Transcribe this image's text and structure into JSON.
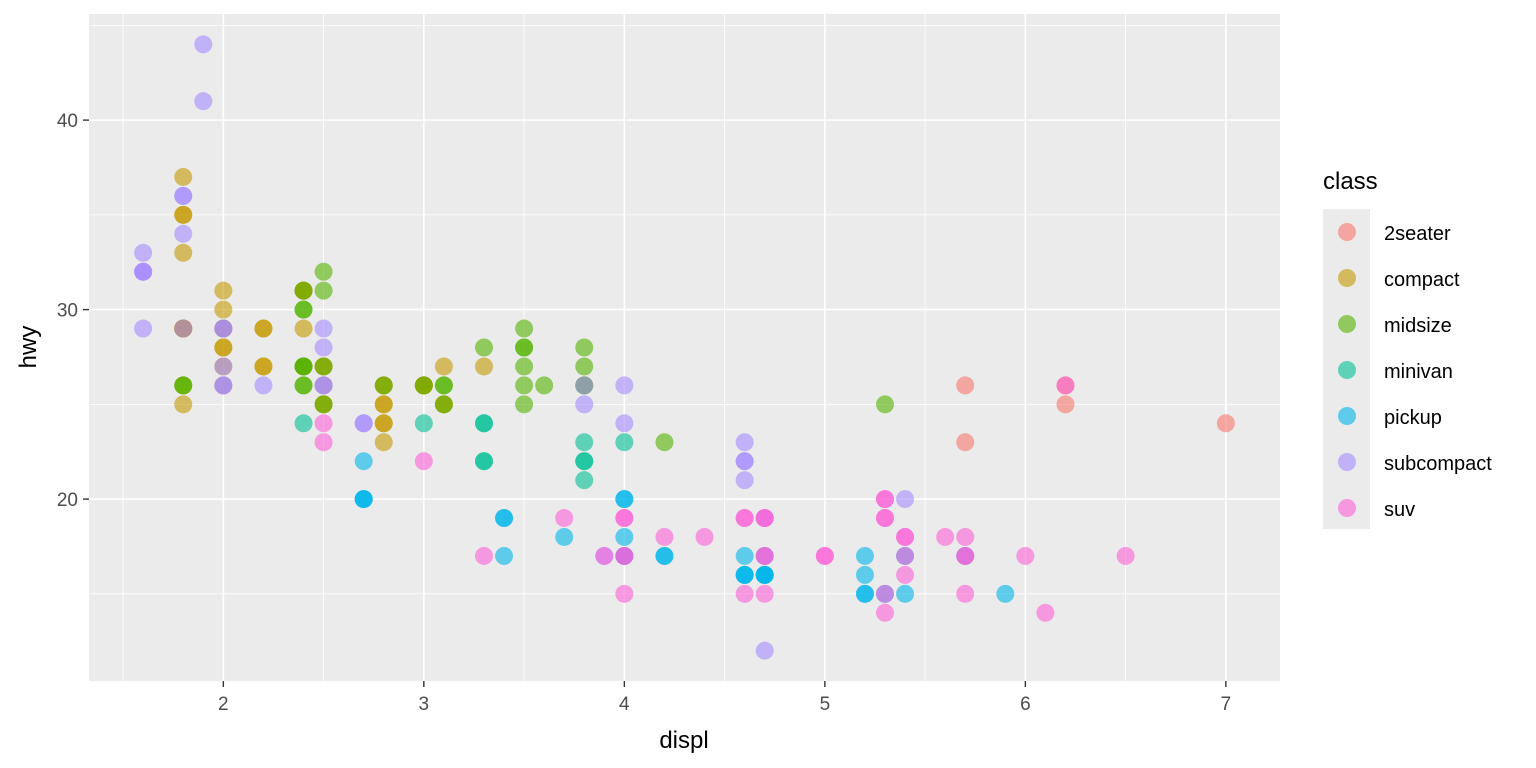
{
  "chart_data": {
    "type": "scatter",
    "xlabel": "displ",
    "ylabel": "hwy",
    "xlim": [
      1.33,
      7.27
    ],
    "ylim": [
      10.4,
      45.6
    ],
    "x_ticks": [
      2,
      3,
      4,
      5,
      6,
      7
    ],
    "y_ticks": [
      20,
      30,
      40
    ],
    "grid": true,
    "legend": {
      "title": "class",
      "position": "right"
    },
    "series": [
      {
        "name": "2seater",
        "color": "#F8766D",
        "points": [
          [
            5.7,
            26
          ],
          [
            5.7,
            23
          ],
          [
            6.2,
            26
          ],
          [
            6.2,
            25
          ],
          [
            7.0,
            24
          ]
        ]
      },
      {
        "name": "compact",
        "color": "#C49A00",
        "points": [
          [
            1.8,
            29
          ],
          [
            1.8,
            29
          ],
          [
            2.0,
            31
          ],
          [
            2.0,
            30
          ],
          [
            2.8,
            26
          ],
          [
            2.8,
            26
          ],
          [
            3.1,
            27
          ],
          [
            1.8,
            26
          ],
          [
            1.8,
            25
          ],
          [
            2.0,
            28
          ],
          [
            2.0,
            27
          ],
          [
            2.8,
            25
          ],
          [
            2.8,
            25
          ],
          [
            3.1,
            25
          ],
          [
            3.1,
            25
          ],
          [
            2.2,
            29
          ],
          [
            2.2,
            27
          ],
          [
            2.4,
            31
          ],
          [
            2.4,
            31
          ],
          [
            3.0,
            26
          ],
          [
            3.0,
            26
          ],
          [
            2.2,
            27
          ],
          [
            2.2,
            29
          ],
          [
            2.4,
            31
          ],
          [
            2.4,
            29
          ],
          [
            3.0,
            26
          ],
          [
            3.0,
            26
          ],
          [
            3.3,
            27
          ],
          [
            1.8,
            33
          ],
          [
            1.8,
            35
          ],
          [
            1.8,
            37
          ],
          [
            1.8,
            35
          ],
          [
            1.8,
            29
          ],
          [
            1.8,
            29
          ],
          [
            2.0,
            28
          ],
          [
            2.0,
            29
          ],
          [
            2.0,
            26
          ],
          [
            2.0,
            29
          ],
          [
            2.8,
            24
          ],
          [
            2.8,
            24
          ],
          [
            2.5,
            27
          ],
          [
            2.5,
            25
          ],
          [
            2.5,
            26
          ],
          [
            2.5,
            25
          ],
          [
            2.5,
            27
          ],
          [
            2.8,
            23
          ],
          [
            2.4,
            27
          ]
        ]
      },
      {
        "name": "midsize",
        "color": "#53B400",
        "points": [
          [
            1.8,
            26
          ],
          [
            2.4,
            26
          ],
          [
            2.4,
            27
          ],
          [
            3.1,
            26
          ],
          [
            3.5,
            28
          ],
          [
            3.6,
            26
          ],
          [
            2.4,
            30
          ],
          [
            3.0,
            26
          ],
          [
            3.3,
            28
          ],
          [
            3.8,
            26
          ],
          [
            2.4,
            27
          ],
          [
            3.5,
            29
          ],
          [
            3.8,
            27
          ],
          [
            2.5,
            31
          ],
          [
            2.5,
            32
          ],
          [
            2.5,
            27
          ],
          [
            3.5,
            26
          ],
          [
            3.5,
            25
          ],
          [
            2.4,
            31
          ],
          [
            2.4,
            30
          ],
          [
            3.1,
            26
          ],
          [
            3.5,
            28
          ],
          [
            3.5,
            27
          ],
          [
            3.8,
            28
          ],
          [
            3.8,
            26
          ],
          [
            5.3,
            25
          ],
          [
            4.2,
            23
          ],
          [
            2.8,
            26
          ],
          [
            3.1,
            25
          ],
          [
            2.4,
            27
          ],
          [
            2.4,
            26
          ],
          [
            2.5,
            25
          ],
          [
            1.8,
            26
          ]
        ]
      },
      {
        "name": "minivan",
        "color": "#00C094",
        "points": [
          [
            2.4,
            24
          ],
          [
            3.0,
            24
          ],
          [
            3.3,
            22
          ],
          [
            3.3,
            22
          ],
          [
            3.3,
            24
          ],
          [
            3.3,
            24
          ],
          [
            3.8,
            21
          ],
          [
            3.8,
            22
          ],
          [
            3.8,
            23
          ],
          [
            4.0,
            23
          ],
          [
            3.8,
            22
          ]
        ]
      },
      {
        "name": "pickup",
        "color": "#00B6EB",
        "points": [
          [
            2.7,
            20
          ],
          [
            2.7,
            20
          ],
          [
            2.7,
            22
          ],
          [
            3.4,
            17
          ],
          [
            3.4,
            19
          ],
          [
            4.0,
            20
          ],
          [
            4.0,
            18
          ],
          [
            4.7,
            17
          ],
          [
            4.7,
            16
          ],
          [
            5.2,
            15
          ],
          [
            5.2,
            15
          ],
          [
            5.7,
            17
          ],
          [
            3.7,
            18
          ],
          [
            4.2,
            17
          ],
          [
            4.6,
            17
          ],
          [
            4.6,
            16
          ],
          [
            5.4,
            15
          ],
          [
            5.4,
            17
          ],
          [
            4.7,
            16
          ],
          [
            4.7,
            16
          ],
          [
            5.2,
            16
          ],
          [
            5.2,
            17
          ],
          [
            5.9,
            15
          ],
          [
            4.6,
            16
          ],
          [
            5.3,
            15
          ],
          [
            4.7,
            16
          ],
          [
            4.0,
            20
          ],
          [
            4.2,
            17
          ],
          [
            4.6,
            16
          ],
          [
            4.0,
            17
          ],
          [
            3.4,
            19
          ],
          [
            2.7,
            20
          ],
          [
            4.0,
            17
          ]
        ]
      },
      {
        "name": "subcompact",
        "color": "#A58AFF",
        "points": [
          [
            1.6,
            33
          ],
          [
            1.6,
            32
          ],
          [
            1.6,
            32
          ],
          [
            1.6,
            29
          ],
          [
            1.6,
            32
          ],
          [
            1.8,
            34
          ],
          [
            1.8,
            36
          ],
          [
            1.8,
            36
          ],
          [
            2.0,
            29
          ],
          [
            2.0,
            26
          ],
          [
            2.0,
            27
          ],
          [
            2.2,
            26
          ],
          [
            2.5,
            26
          ],
          [
            2.5,
            26
          ],
          [
            2.5,
            29
          ],
          [
            2.5,
            28
          ],
          [
            2.7,
            24
          ],
          [
            2.7,
            24
          ],
          [
            1.9,
            44
          ],
          [
            1.9,
            41
          ],
          [
            1.8,
            29
          ],
          [
            2.0,
            26
          ],
          [
            2.0,
            29
          ],
          [
            3.8,
            25
          ],
          [
            3.8,
            26
          ],
          [
            4.0,
            26
          ],
          [
            4.0,
            24
          ],
          [
            4.6,
            21
          ],
          [
            4.6,
            22
          ],
          [
            4.6,
            23
          ],
          [
            4.6,
            22
          ],
          [
            5.4,
            20
          ],
          [
            4.7,
            19
          ],
          [
            3.9,
            17
          ],
          [
            4.7,
            12
          ]
        ]
      },
      {
        "name": "suv",
        "color": "#FB61D7",
        "points": [
          [
            5.3,
            20
          ],
          [
            5.3,
            15
          ],
          [
            5.3,
            20
          ],
          [
            5.7,
            17
          ],
          [
            6.0,
            17
          ],
          [
            5.7,
            17
          ],
          [
            5.7,
            18
          ],
          [
            6.2,
            26
          ],
          [
            5.4,
            18
          ],
          [
            5.3,
            19
          ],
          [
            6.5,
            17
          ],
          [
            4.0,
            19
          ],
          [
            4.0,
            17
          ],
          [
            4.0,
            15
          ],
          [
            4.6,
            19
          ],
          [
            5.0,
            17
          ],
          [
            4.7,
            17
          ],
          [
            4.7,
            19
          ],
          [
            5.7,
            15
          ],
          [
            6.1,
            14
          ],
          [
            4.4,
            18
          ],
          [
            5.4,
            16
          ],
          [
            5.4,
            18
          ],
          [
            4.2,
            18
          ],
          [
            4.6,
            15
          ],
          [
            4.6,
            19
          ],
          [
            5.4,
            17
          ],
          [
            5.6,
            18
          ],
          [
            5.3,
            14
          ],
          [
            3.0,
            22
          ],
          [
            4.0,
            19
          ],
          [
            3.3,
            17
          ],
          [
            3.7,
            19
          ],
          [
            4.7,
            15
          ],
          [
            2.5,
            23
          ],
          [
            2.5,
            24
          ],
          [
            4.0,
            17
          ],
          [
            5.0,
            17
          ],
          [
            5.3,
            19
          ],
          [
            4.7,
            19
          ],
          [
            3.9,
            17
          ],
          [
            4.7,
            17
          ]
        ]
      }
    ]
  }
}
